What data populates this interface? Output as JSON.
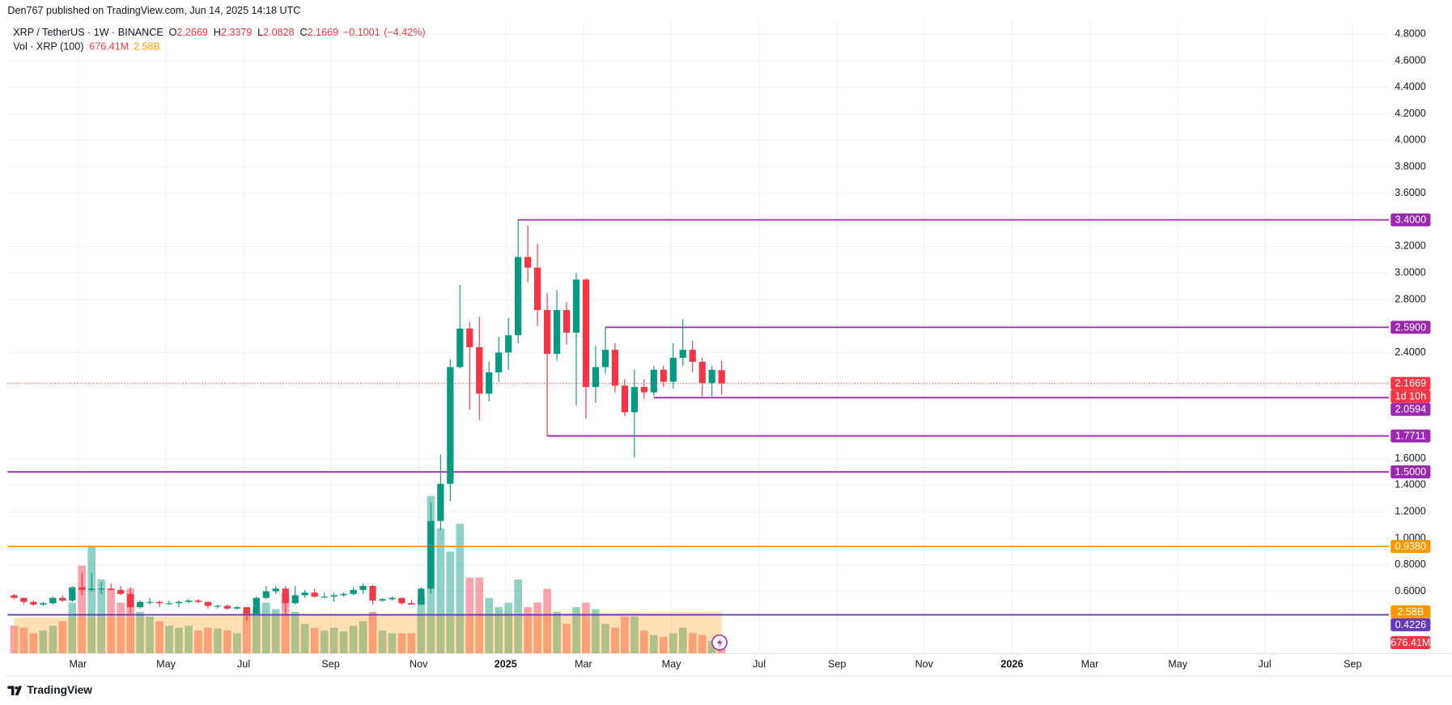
{
  "publisher": "Den767 published on TradingView.com, Jun 14, 2025 14:18 UTC",
  "brand": "TradingView",
  "chart_data": {
    "type": "candlestick",
    "title": "XRP / TetherUS · 1W · BINANCE",
    "ohlc_labels": [
      "O",
      "H",
      "L",
      "C"
    ],
    "change": {
      "value": -0.1001,
      "label": "−0.1001"
    },
    "change_pct": {
      "value": -4.42,
      "label": "(−4.42%)"
    },
    "up_color": "#089981",
    "down_color": "#f23645",
    "open": [
      0.57,
      0.55,
      0.52,
      0.5,
      0.51,
      0.55,
      0.53,
      0.63,
      0.61,
      0.62,
      0.62,
      0.61,
      0.58,
      0.48,
      0.52,
      0.52,
      0.51,
      0.51,
      0.52,
      0.53,
      0.52,
      0.49,
      0.49,
      0.47,
      0.48,
      0.43,
      0.55,
      0.6,
      0.62,
      0.51,
      0.57,
      0.59,
      0.56,
      0.56,
      0.57,
      0.58,
      0.61,
      0.64,
      0.53,
      0.54,
      0.55,
      0.51,
      0.5,
      0.62,
      1.13,
      1.41,
      2.29,
      2.58,
      2.44,
      2.09,
      2.25,
      2.4,
      2.53,
      3.12,
      3.04,
      2.72,
      2.39,
      2.72,
      2.55,
      2.95,
      2.14,
      2.29,
      2.42,
      2.15,
      1.95,
      2.14,
      2.1,
      2.27,
      2.18,
      2.36,
      2.42,
      2.33,
      2.17,
      2.2669
    ],
    "high": [
      0.58,
      0.55,
      0.53,
      0.52,
      0.56,
      0.57,
      0.64,
      0.74,
      0.74,
      0.67,
      0.66,
      0.64,
      0.63,
      0.53,
      0.55,
      0.53,
      0.53,
      0.53,
      0.54,
      0.54,
      0.52,
      0.5,
      0.5,
      0.49,
      0.48,
      0.56,
      0.64,
      0.64,
      0.64,
      0.64,
      0.61,
      0.62,
      0.59,
      0.59,
      0.59,
      0.63,
      0.66,
      0.65,
      0.55,
      0.56,
      0.55,
      0.53,
      0.63,
      1.27,
      1.63,
      2.35,
      2.91,
      2.63,
      2.67,
      2.33,
      2.52,
      2.66,
      3.4,
      3.36,
      3.22,
      2.85,
      2.87,
      2.78,
      3.0,
      2.96,
      2.45,
      2.59,
      2.47,
      2.2,
      2.27,
      2.2,
      2.3,
      2.3,
      2.47,
      2.65,
      2.49,
      2.36,
      2.3,
      2.3379
    ],
    "low": [
      0.54,
      0.5,
      0.49,
      0.49,
      0.5,
      0.52,
      0.52,
      0.57,
      0.6,
      0.58,
      0.61,
      0.57,
      0.42,
      0.47,
      0.5,
      0.48,
      0.5,
      0.48,
      0.51,
      0.51,
      0.47,
      0.47,
      0.46,
      0.46,
      0.38,
      0.43,
      0.54,
      0.58,
      0.43,
      0.5,
      0.55,
      0.55,
      0.55,
      0.52,
      0.56,
      0.57,
      0.58,
      0.5,
      0.52,
      0.53,
      0.5,
      0.5,
      0.5,
      0.58,
      1.06,
      1.28,
      2.28,
      1.97,
      1.89,
      2.03,
      2.18,
      2.27,
      2.47,
      2.93,
      2.6,
      1.77,
      2.34,
      2.46,
      2.0,
      1.9,
      2.02,
      2.24,
      2.1,
      1.92,
      1.61,
      2.05,
      2.07,
      2.14,
      2.13,
      2.3,
      2.25,
      2.07,
      2.07,
      2.0828
    ],
    "close": [
      0.55,
      0.52,
      0.5,
      0.51,
      0.55,
      0.53,
      0.63,
      0.61,
      0.62,
      0.62,
      0.61,
      0.58,
      0.48,
      0.52,
      0.52,
      0.51,
      0.51,
      0.52,
      0.53,
      0.52,
      0.49,
      0.49,
      0.47,
      0.48,
      0.43,
      0.55,
      0.6,
      0.62,
      0.51,
      0.57,
      0.59,
      0.56,
      0.56,
      0.57,
      0.58,
      0.61,
      0.64,
      0.53,
      0.54,
      0.55,
      0.51,
      0.5,
      0.62,
      1.13,
      1.41,
      2.29,
      2.58,
      2.44,
      2.09,
      2.25,
      2.4,
      2.53,
      3.12,
      3.04,
      2.72,
      2.39,
      2.72,
      2.55,
      2.95,
      2.14,
      2.29,
      2.42,
      2.15,
      1.95,
      2.14,
      2.1,
      2.27,
      2.18,
      2.36,
      2.42,
      2.33,
      2.17,
      2.27,
      2.1669
    ],
    "countdown": "1d 10h",
    "volume": {
      "name": "Vol · XRP (100)",
      "values": [
        1720,
        1600,
        1260,
        1430,
        1720,
        2000,
        3150,
        5440,
        6590,
        4580,
        4010,
        3150,
        4010,
        2580,
        2290,
        2000,
        1720,
        1600,
        1720,
        1430,
        1600,
        1550,
        1430,
        1260,
        2580,
        2870,
        3150,
        2750,
        3720,
        2580,
        1830,
        1600,
        1430,
        1600,
        1380,
        1720,
        2000,
        2580,
        1430,
        1260,
        1260,
        1260,
        3440,
        9740,
        7740,
        6300,
        8020,
        4700,
        4700,
        3440,
        2870,
        3150,
        4580,
        2870,
        3150,
        4010,
        2580,
        1830,
        2870,
        3150,
        2750,
        1830,
        1600,
        2290,
        2290,
        1430,
        1150,
        1030,
        1260,
        1600,
        1260,
        1150,
        800,
        676.41
      ],
      "last_label": "676.41M",
      "ma": [
        2215,
        2220,
        2225,
        2230,
        2235,
        2240,
        2245,
        2250,
        2255,
        2260,
        2265,
        2270,
        2275,
        2280,
        2285,
        2290,
        2295,
        2300,
        2305,
        2310,
        2315,
        2320,
        2325,
        2330,
        2335,
        2340,
        2345,
        2350,
        2355,
        2360,
        2365,
        2370,
        2375,
        2380,
        2385,
        2390,
        2395,
        2400,
        2405,
        2410,
        2415,
        2420,
        2425,
        2430,
        2435,
        2440,
        2445,
        2450,
        2455,
        2460,
        2465,
        2470,
        2475,
        2480,
        2485,
        2490,
        2495,
        2500,
        2505,
        2510,
        2515,
        2520,
        2525,
        2530,
        2535,
        2540,
        2545,
        2550,
        2555,
        2560,
        2565,
        2570,
        2575,
        2580
      ],
      "ma_last_label": "2.58B",
      "ma_color": "#ff9800",
      "vlim": [
        0,
        39000
      ]
    },
    "levels": [
      {
        "value": 3.4,
        "label": "3.4000",
        "color": "#9c27b0"
      },
      {
        "value": 2.59,
        "label": "2.5900",
        "color": "#9c27b0"
      },
      {
        "value": 2.0594,
        "label": "2.0594",
        "color": "#9c27b0"
      },
      {
        "value": 1.7711,
        "label": "1.7711",
        "color": "#9c27b0"
      },
      {
        "value": 1.5,
        "label": "1.5000",
        "color": "#9c27b0"
      },
      {
        "value": 0.938,
        "label": "0.9380",
        "color": "#ff9800"
      },
      {
        "value": 0.4226,
        "label": "0.4226",
        "color": "#673ab7"
      }
    ],
    "ylim": [
      0.13,
      4.89
    ],
    "yticks": [
      {
        "value": 0.6,
        "label": "0.6000"
      },
      {
        "value": 0.8,
        "label": "0.8000"
      },
      {
        "value": 1.0,
        "label": "1.0000"
      },
      {
        "value": 1.2,
        "label": "1.2000"
      },
      {
        "value": 1.4,
        "label": "1.4000"
      },
      {
        "value": 1.6,
        "label": "1.6000"
      },
      {
        "value": 2.4,
        "label": "2.4000"
      },
      {
        "value": 2.8,
        "label": "2.8000"
      },
      {
        "value": 3.0,
        "label": "3.0000"
      },
      {
        "value": 3.2,
        "label": "3.2000"
      },
      {
        "value": 3.6,
        "label": "3.6000"
      },
      {
        "value": 3.8,
        "label": "3.8000"
      },
      {
        "value": 4.0,
        "label": "4.0000"
      },
      {
        "value": 4.2,
        "label": "4.2000"
      },
      {
        "value": 4.4,
        "label": "4.4000"
      },
      {
        "value": 4.6,
        "label": "4.6000"
      },
      {
        "value": 4.8,
        "label": "4.8000"
      }
    ],
    "xticks": [
      "Mar",
      "May",
      "Jul",
      "Sep",
      "Nov",
      "2025",
      "Mar",
      "May",
      "Jul",
      "Sep",
      "Nov",
      "2026",
      "Mar",
      "May",
      "Jul",
      "Sep"
    ],
    "grid": true
  }
}
